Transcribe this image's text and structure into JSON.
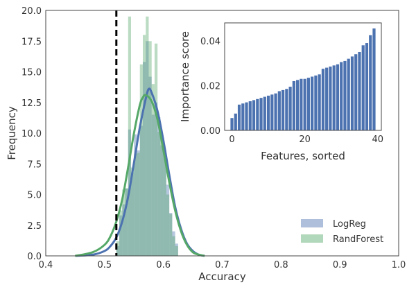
{
  "colors": {
    "logreg": "#4C72B0",
    "randforest": "#55A868",
    "baseline": "#000000",
    "inset_bars": "#4C72B0",
    "frame": "#444444"
  },
  "chart_data": [
    {
      "type": "histogram",
      "xlabel": "Accuracy",
      "ylabel": "Frequency",
      "xlim": [
        0.4,
        1.0
      ],
      "ylim": [
        0.0,
        20.0
      ],
      "xticks": [
        "0.4",
        "0.5",
        "0.6",
        "0.7",
        "0.8",
        "0.9",
        "1.0"
      ],
      "yticks": [
        "0.0",
        "2.5",
        "5.0",
        "7.5",
        "10.0",
        "12.5",
        "15.0",
        "17.5",
        "20.0"
      ],
      "grid": false,
      "legend_position": "lower-right",
      "baseline_x": 0.52,
      "bin_width": 0.005,
      "series": [
        {
          "name": "LogReg",
          "bin_starts": [
            0.52,
            0.525,
            0.53,
            0.535,
            0.54,
            0.545,
            0.55,
            0.555,
            0.56,
            0.565,
            0.57,
            0.575,
            0.58,
            0.585,
            0.59,
            0.595,
            0.6,
            0.605,
            0.61,
            0.615,
            0.62
          ],
          "values": [
            0.8,
            3.3,
            4.2,
            5.5,
            10.3,
            6.8,
            9.9,
            8.6,
            10.6,
            15.8,
            17.5,
            14.6,
            11.5,
            12.5,
            11.3,
            9.0,
            8.3,
            5.8,
            3.5,
            2.0,
            1.0
          ],
          "kde_x": [
            0.45,
            0.48,
            0.5,
            0.51,
            0.52,
            0.53,
            0.54,
            0.55,
            0.56,
            0.57,
            0.575,
            0.58,
            0.59,
            0.6,
            0.61,
            0.62,
            0.63,
            0.64,
            0.65,
            0.66,
            0.67
          ],
          "kde_y": [
            0.0,
            0.1,
            0.4,
            0.8,
            1.5,
            2.8,
            4.8,
            7.6,
            10.5,
            12.8,
            13.6,
            13.3,
            11.8,
            9.4,
            6.6,
            4.0,
            2.2,
            1.0,
            0.4,
            0.1,
            0.0
          ]
        },
        {
          "name": "RandForest",
          "bin_starts": [
            0.52,
            0.525,
            0.53,
            0.535,
            0.54,
            0.545,
            0.55,
            0.555,
            0.56,
            0.565,
            0.57,
            0.575,
            0.58,
            0.585,
            0.59,
            0.595,
            0.6,
            0.605,
            0.61,
            0.615,
            0.62
          ],
          "values": [
            1.2,
            3.7,
            5.4,
            5.5,
            19.5,
            7.2,
            8.3,
            8.4,
            15.6,
            18.0,
            19.5,
            17.5,
            14.0,
            17.3,
            10.1,
            9.4,
            8.6,
            5.0,
            3.4,
            1.6,
            0.8
          ],
          "kde_x": [
            0.45,
            0.48,
            0.5,
            0.51,
            0.52,
            0.53,
            0.54,
            0.55,
            0.56,
            0.565,
            0.57,
            0.58,
            0.59,
            0.6,
            0.61,
            0.62,
            0.63,
            0.64,
            0.65,
            0.66,
            0.67
          ],
          "kde_y": [
            0.0,
            0.3,
            0.9,
            1.6,
            2.8,
            4.6,
            7.2,
            10.0,
            12.3,
            12.9,
            13.1,
            12.6,
            11.1,
            8.6,
            6.0,
            3.7,
            2.0,
            0.9,
            0.3,
            0.1,
            0.0
          ]
        }
      ]
    },
    {
      "type": "bar",
      "xlabel": "Features, sorted",
      "ylabel": "Importance score",
      "xlim": [
        -2,
        41
      ],
      "ylim": [
        0.0,
        0.048
      ],
      "xticks": [
        "0",
        "20",
        "40"
      ],
      "yticks": [
        "0.00",
        "0.02",
        "0.04"
      ],
      "grid": false,
      "x": [
        0,
        1,
        2,
        3,
        4,
        5,
        6,
        7,
        8,
        9,
        10,
        11,
        12,
        13,
        14,
        15,
        16,
        17,
        18,
        19,
        20,
        21,
        22,
        23,
        24,
        25,
        26,
        27,
        28,
        29,
        30,
        31,
        32,
        33,
        34,
        35,
        36,
        37,
        38,
        39
      ],
      "values": [
        0.0055,
        0.0075,
        0.0115,
        0.012,
        0.0125,
        0.013,
        0.0135,
        0.014,
        0.0145,
        0.015,
        0.0155,
        0.016,
        0.0165,
        0.0175,
        0.018,
        0.0185,
        0.0195,
        0.022,
        0.0225,
        0.023,
        0.023,
        0.0235,
        0.024,
        0.0245,
        0.025,
        0.0275,
        0.028,
        0.0285,
        0.029,
        0.0295,
        0.0305,
        0.031,
        0.032,
        0.033,
        0.034,
        0.035,
        0.038,
        0.039,
        0.0425,
        0.0455
      ]
    }
  ]
}
